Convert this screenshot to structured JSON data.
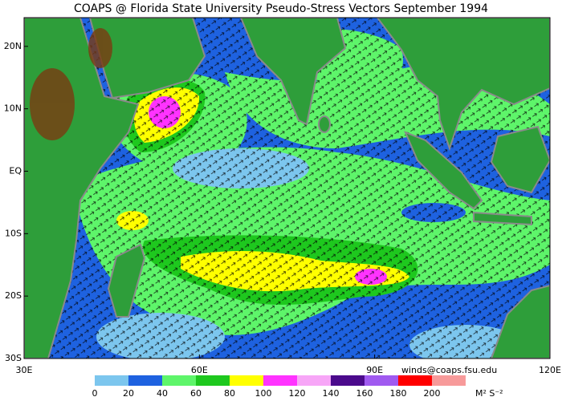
{
  "title": "COAPS @ Florida State University Pseudo-Stress Vectors  September 1994",
  "map": {
    "lon_range": [
      30,
      120
    ],
    "lat_range": [
      -30,
      24.6
    ],
    "lon_ticks": [
      {
        "value": 30,
        "label": "30E"
      },
      {
        "value": 60,
        "label": "60E"
      },
      {
        "value": 90,
        "label": "90E"
      },
      {
        "value": 120,
        "label": "120E"
      }
    ],
    "lat_ticks": [
      {
        "value": 20,
        "label": "20N"
      },
      {
        "value": 10,
        "label": "10N"
      },
      {
        "value": 0,
        "label": "EQ"
      },
      {
        "value": -10,
        "label": "10S"
      },
      {
        "value": -20,
        "label": "20S"
      },
      {
        "value": -30,
        "label": "30S"
      }
    ]
  },
  "credit": "winds@coaps.fsu.edu",
  "colorbar": {
    "levels": [
      0,
      20,
      40,
      60,
      80,
      100,
      120,
      140,
      160,
      180,
      200
    ],
    "colors": [
      "#7cc6ee",
      "#1e62e0",
      "#5ef56a",
      "#1ec81e",
      "#ffff00",
      "#ff33ff",
      "#f7a6f7",
      "#4b0a8c",
      "#a05af0",
      "#ff0000",
      "#f79a9a"
    ],
    "unit": "M² S⁻²"
  }
}
